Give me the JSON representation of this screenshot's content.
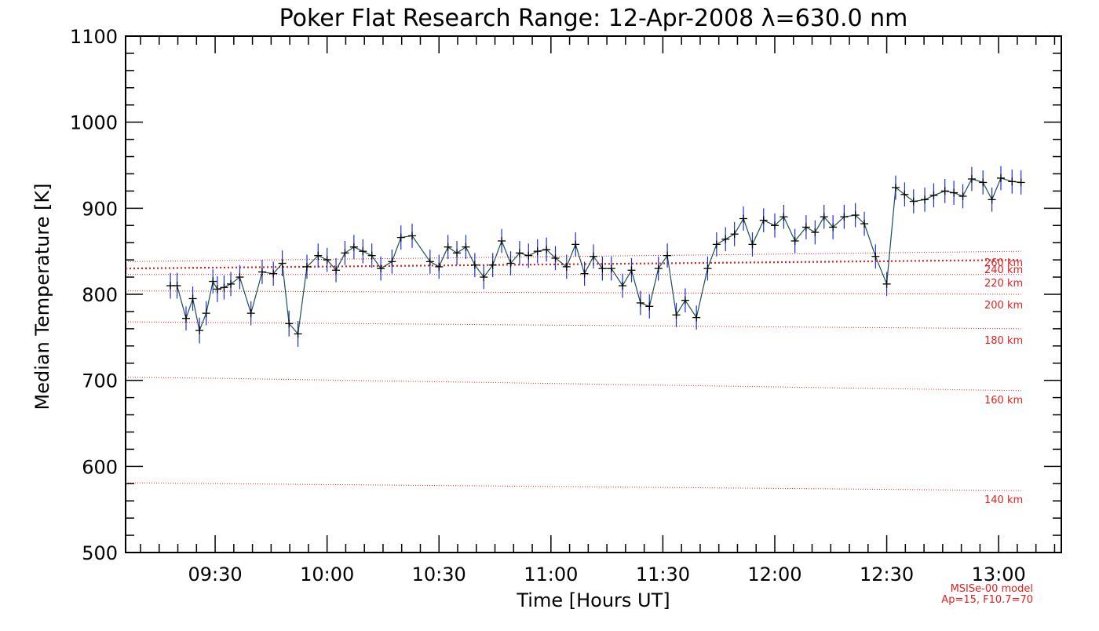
{
  "chart_data": {
    "type": "line",
    "title": "Poker Flat Research Range: 12-Apr-2008 λ=630.0 nm",
    "xlabel": "Time [Hours UT]",
    "ylabel": "Median Temperature [K]",
    "xlim": [
      9.1,
      13.28
    ],
    "ylim": [
      500,
      1100
    ],
    "xticks": [
      {
        "v": 9.5,
        "label": "09:30"
      },
      {
        "v": 10.0,
        "label": "10:00"
      },
      {
        "v": 10.5,
        "label": "10:30"
      },
      {
        "v": 11.0,
        "label": "11:00"
      },
      {
        "v": 11.5,
        "label": "11:30"
      },
      {
        "v": 12.0,
        "label": "12:00"
      },
      {
        "v": 12.5,
        "label": "12:30"
      },
      {
        "v": 13.0,
        "label": "13:00"
      }
    ],
    "yticks": [
      500,
      600,
      700,
      800,
      900,
      1000,
      1100
    ],
    "grid": false,
    "series": [
      {
        "color": "#1a4f4f",
        "errorbar_color": "#1a2fd6",
        "marker": "+",
        "x": [
          9.3,
          9.33,
          9.37,
          9.4,
          9.43,
          9.46,
          9.49,
          9.51,
          9.54,
          9.57,
          9.61,
          9.66,
          9.71,
          9.76,
          9.8,
          9.83,
          9.87,
          9.91,
          9.96,
          10.0,
          10.04,
          10.08,
          10.12,
          10.16,
          10.2,
          10.24,
          10.29,
          10.33,
          10.38,
          10.46,
          10.5,
          10.54,
          10.58,
          10.62,
          10.66,
          10.7,
          10.74,
          10.78,
          10.82,
          10.86,
          10.9,
          10.94,
          10.98,
          11.02,
          11.07,
          11.11,
          11.15,
          11.19,
          11.23,
          11.27,
          11.32,
          11.36,
          11.4,
          11.44,
          11.48,
          11.52,
          11.56,
          11.6,
          11.65,
          11.7,
          11.74,
          11.78,
          11.82,
          11.86,
          11.9,
          11.95,
          12.0,
          12.04,
          12.09,
          12.14,
          12.18,
          12.22,
          12.26,
          12.31,
          12.36,
          12.4,
          12.45,
          12.5,
          12.54,
          12.58,
          12.62,
          12.67,
          12.71,
          12.76,
          12.8,
          12.84,
          12.88,
          12.93,
          12.97,
          13.01,
          13.06,
          13.1
        ],
        "values": [
          810,
          810,
          772,
          795,
          758,
          778,
          815,
          806,
          808,
          812,
          820,
          778,
          826,
          824,
          836,
          766,
          754,
          832,
          845,
          840,
          828,
          848,
          855,
          850,
          845,
          830,
          838,
          866,
          868,
          838,
          832,
          855,
          848,
          855,
          834,
          820,
          834,
          862,
          836,
          848,
          845,
          850,
          852,
          842,
          832,
          858,
          824,
          844,
          830,
          830,
          810,
          828,
          790,
          786,
          830,
          845,
          776,
          793,
          773,
          830,
          858,
          864,
          870,
          888,
          858,
          886,
          880,
          890,
          862,
          878,
          872,
          890,
          878,
          890,
          892,
          882,
          844,
          812,
          924,
          916,
          908,
          910,
          915,
          920,
          918,
          914,
          934,
          930,
          910,
          935,
          931,
          930
        ],
        "errors": [
          15,
          15,
          14,
          14,
          15,
          14,
          14,
          15,
          14,
          14,
          14,
          14,
          14,
          14,
          15,
          15,
          15,
          14,
          14,
          14,
          14,
          14,
          14,
          14,
          14,
          14,
          14,
          14,
          14,
          14,
          14,
          14,
          14,
          14,
          14,
          14,
          14,
          14,
          14,
          14,
          14,
          14,
          14,
          14,
          14,
          14,
          14,
          14,
          14,
          14,
          14,
          14,
          14,
          14,
          14,
          14,
          14,
          14,
          14,
          14,
          14,
          14,
          14,
          14,
          14,
          14,
          14,
          14,
          14,
          14,
          14,
          14,
          14,
          14,
          14,
          14,
          14,
          14,
          14,
          14,
          14,
          14,
          14,
          14,
          14,
          14,
          14,
          14,
          14,
          14,
          14,
          14
        ]
      }
    ],
    "model_lines": {
      "color": "#e02020",
      "x": [
        9.1,
        13.1
      ],
      "lines": [
        {
          "label": "140 km",
          "y": [
            581,
            572
          ],
          "emphasis": false
        },
        {
          "label": "160 km",
          "y": [
            704,
            688
          ],
          "emphasis": false
        },
        {
          "label": "180 km",
          "y": [
            768,
            760
          ],
          "emphasis": false
        },
        {
          "label": "200 km",
          "y": [
            804,
            800
          ],
          "emphasis": false
        },
        {
          "label": "220 km",
          "y": [
            823,
            823
          ],
          "emphasis": false
        },
        {
          "label": "240 km",
          "y": [
            830,
            840
          ],
          "emphasis": true
        },
        {
          "label": "260 km",
          "y": [
            838,
            850
          ],
          "emphasis": false
        }
      ]
    },
    "model_note": [
      "MSISe-00 model",
      "Ap=15, F10.7=70"
    ]
  }
}
